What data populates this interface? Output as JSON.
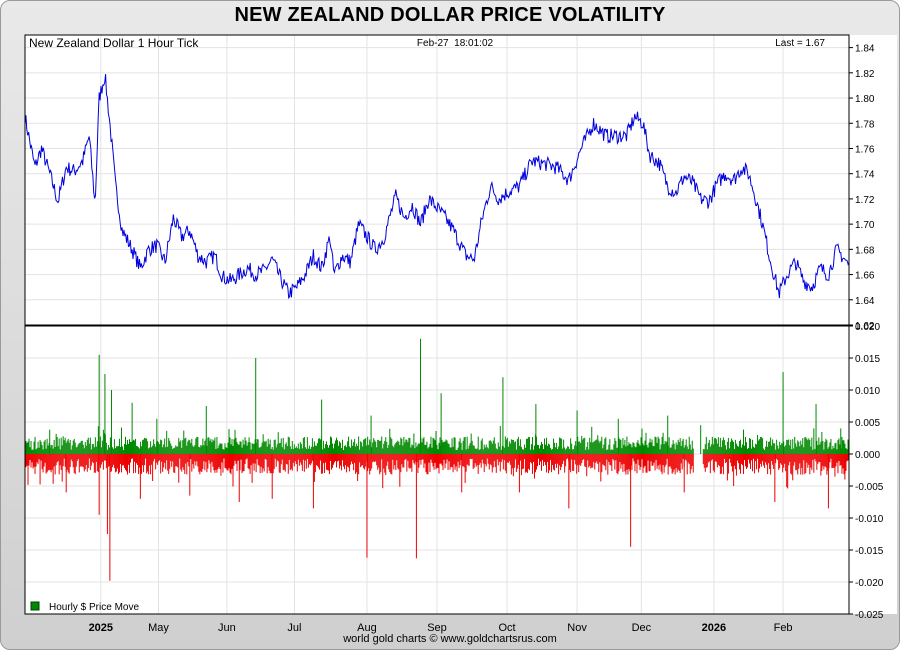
{
  "title": "NEW ZEALAND DOLLAR PRICE VOLATILITY",
  "footer": "world gold charts © www.goldchartsrus.com",
  "chart_data": [
    {
      "type": "line",
      "subtitle": "New Zealand Dollar 1 Hour Tick",
      "timestamp": "Feb-27  18:01:02",
      "last_label": "Last = 1.67",
      "color": "#0000dd",
      "ylim": [
        1.62,
        1.85
      ],
      "yticks": [
        "1.84",
        "1.82",
        "1.80",
        "1.78",
        "1.76",
        "1.74",
        "1.72",
        "1.70",
        "1.68",
        "1.66",
        "1.64",
        "1.62"
      ],
      "xticks": [
        {
          "label": "2025",
          "t": 0.092,
          "bold": true
        },
        {
          "label": "May",
          "t": 0.162,
          "bold": false
        },
        {
          "label": "Jun",
          "t": 0.245,
          "bold": false
        },
        {
          "label": "Jul",
          "t": 0.327,
          "bold": false
        },
        {
          "label": "Aug",
          "t": 0.415,
          "bold": false
        },
        {
          "label": "Sep",
          "t": 0.5,
          "bold": false
        },
        {
          "label": "Oct",
          "t": 0.585,
          "bold": false
        },
        {
          "label": "Nov",
          "t": 0.67,
          "bold": false
        },
        {
          "label": "Dec",
          "t": 0.748,
          "bold": false
        },
        {
          "label": "2026",
          "t": 0.836,
          "bold": true
        },
        {
          "label": "Feb",
          "t": 0.92,
          "bold": false
        }
      ],
      "points": [
        [
          0.0,
          1.785
        ],
        [
          0.012,
          1.745
        ],
        [
          0.02,
          1.76
        ],
        [
          0.03,
          1.74
        ],
        [
          0.04,
          1.718
        ],
        [
          0.05,
          1.745
        ],
        [
          0.06,
          1.742
        ],
        [
          0.07,
          1.75
        ],
        [
          0.078,
          1.77
        ],
        [
          0.085,
          1.715
        ],
        [
          0.09,
          1.8
        ],
        [
          0.097,
          1.818
        ],
        [
          0.103,
          1.78
        ],
        [
          0.11,
          1.73
        ],
        [
          0.118,
          1.695
        ],
        [
          0.13,
          1.68
        ],
        [
          0.14,
          1.665
        ],
        [
          0.15,
          1.68
        ],
        [
          0.16,
          1.683
        ],
        [
          0.17,
          1.67
        ],
        [
          0.18,
          1.705
        ],
        [
          0.19,
          1.69
        ],
        [
          0.2,
          1.695
        ],
        [
          0.21,
          1.675
        ],
        [
          0.22,
          1.67
        ],
        [
          0.23,
          1.675
        ],
        [
          0.24,
          1.658
        ],
        [
          0.25,
          1.655
        ],
        [
          0.26,
          1.66
        ],
        [
          0.27,
          1.665
        ],
        [
          0.28,
          1.66
        ],
        [
          0.29,
          1.663
        ],
        [
          0.3,
          1.672
        ],
        [
          0.31,
          1.657
        ],
        [
          0.32,
          1.645
        ],
        [
          0.33,
          1.65
        ],
        [
          0.34,
          1.66
        ],
        [
          0.35,
          1.675
        ],
        [
          0.36,
          1.665
        ],
        [
          0.37,
          1.69
        ],
        [
          0.375,
          1.66
        ],
        [
          0.385,
          1.675
        ],
        [
          0.395,
          1.67
        ],
        [
          0.405,
          1.7
        ],
        [
          0.415,
          1.69
        ],
        [
          0.425,
          1.68
        ],
        [
          0.435,
          1.688
        ],
        [
          0.45,
          1.722
        ],
        [
          0.46,
          1.705
        ],
        [
          0.47,
          1.715
        ],
        [
          0.48,
          1.7
        ],
        [
          0.49,
          1.72
        ],
        [
          0.5,
          1.713
        ],
        [
          0.51,
          1.705
        ],
        [
          0.52,
          1.695
        ],
        [
          0.535,
          1.675
        ],
        [
          0.545,
          1.672
        ],
        [
          0.555,
          1.705
        ],
        [
          0.565,
          1.73
        ],
        [
          0.575,
          1.72
        ],
        [
          0.585,
          1.725
        ],
        [
          0.6,
          1.73
        ],
        [
          0.615,
          1.75
        ],
        [
          0.63,
          1.748
        ],
        [
          0.645,
          1.745
        ],
        [
          0.66,
          1.735
        ],
        [
          0.675,
          1.76
        ],
        [
          0.69,
          1.78
        ],
        [
          0.705,
          1.77
        ],
        [
          0.72,
          1.77
        ],
        [
          0.73,
          1.77
        ],
        [
          0.74,
          1.785
        ],
        [
          0.75,
          1.78
        ],
        [
          0.758,
          1.755
        ],
        [
          0.77,
          1.748
        ],
        [
          0.78,
          1.73
        ],
        [
          0.79,
          1.725
        ],
        [
          0.8,
          1.738
        ],
        [
          0.81,
          1.733
        ],
        [
          0.82,
          1.72
        ],
        [
          0.83,
          1.718
        ],
        [
          0.84,
          1.732
        ],
        [
          0.85,
          1.74
        ],
        [
          0.86,
          1.735
        ],
        [
          0.87,
          1.745
        ],
        [
          0.878,
          1.74
        ],
        [
          0.885,
          1.725
        ],
        [
          0.895,
          1.7
        ],
        [
          0.905,
          1.67
        ],
        [
          0.915,
          1.645
        ],
        [
          0.925,
          1.66
        ],
        [
          0.935,
          1.67
        ],
        [
          0.945,
          1.655
        ],
        [
          0.955,
          1.65
        ],
        [
          0.965,
          1.665
        ],
        [
          0.975,
          1.66
        ],
        [
          0.985,
          1.68
        ],
        [
          0.995,
          1.672
        ],
        [
          1.0,
          1.667
        ]
      ]
    },
    {
      "type": "bar",
      "legend": "Hourly $ Price Move",
      "positive_color": "#008800",
      "negative_color": "#ee0000",
      "ylim": [
        -0.025,
        0.02
      ],
      "yticks": [
        "0.020",
        "0.015",
        "0.010",
        "0.005",
        "0.000",
        "-0.005",
        "-0.010",
        "-0.015",
        "-0.020",
        "-0.025"
      ],
      "typical_up": 0.0025,
      "typical_down": -0.0028,
      "spikes_up": [
        [
          0.03,
          0.0038
        ],
        [
          0.09,
          0.0155
        ],
        [
          0.097,
          0.0125
        ],
        [
          0.105,
          0.01
        ],
        [
          0.13,
          0.008
        ],
        [
          0.16,
          0.0055
        ],
        [
          0.22,
          0.0075
        ],
        [
          0.28,
          0.015
        ],
        [
          0.36,
          0.0085
        ],
        [
          0.42,
          0.006
        ],
        [
          0.48,
          0.018
        ],
        [
          0.505,
          0.0095
        ],
        [
          0.58,
          0.012
        ],
        [
          0.62,
          0.0078
        ],
        [
          0.67,
          0.0068
        ],
        [
          0.72,
          0.0055
        ],
        [
          0.78,
          0.006
        ],
        [
          0.82,
          0.0045
        ],
        [
          0.92,
          0.0128
        ],
        [
          0.96,
          0.0078
        ],
        [
          0.99,
          0.004
        ]
      ],
      "spikes_down": [
        [
          0.05,
          -0.006
        ],
        [
          0.09,
          -0.0095
        ],
        [
          0.1,
          -0.0125
        ],
        [
          0.103,
          -0.0198
        ],
        [
          0.14,
          -0.007
        ],
        [
          0.2,
          -0.0065
        ],
        [
          0.26,
          -0.0075
        ],
        [
          0.3,
          -0.007
        ],
        [
          0.35,
          -0.0085
        ],
        [
          0.415,
          -0.0162
        ],
        [
          0.475,
          -0.0163
        ],
        [
          0.53,
          -0.006
        ],
        [
          0.6,
          -0.006
        ],
        [
          0.66,
          -0.0085
        ],
        [
          0.735,
          -0.0145
        ],
        [
          0.8,
          -0.006
        ],
        [
          0.86,
          -0.005
        ],
        [
          0.91,
          -0.0075
        ],
        [
          0.975,
          -0.0085
        ],
        [
          0.995,
          -0.004
        ]
      ]
    }
  ]
}
